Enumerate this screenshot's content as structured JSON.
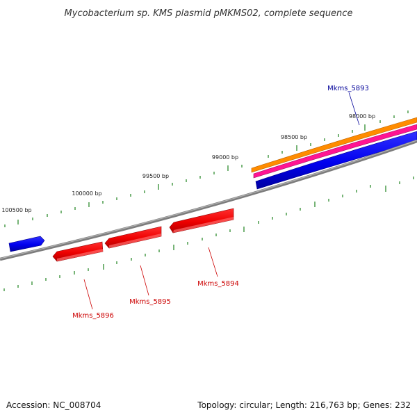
{
  "title": "Mycobacterium sp. KMS plasmid pMKMS02, complete sequence",
  "footer": {
    "accession": "Accession: NC_008704",
    "summary": "Topology: circular; Length: 216,763 bp; Genes: 232"
  },
  "colors": {
    "backbone": "#808080",
    "tick": "#2e8b2e",
    "forward_gene": "#0000ee",
    "reverse_gene": "#ee0000",
    "orange_track": "#ff8c00",
    "magenta_track": "#ff1493",
    "forward_label": "#000099",
    "reverse_label": "#cc0000"
  },
  "bp_markers": [
    {
      "label": "98000 bp"
    },
    {
      "label": "98500 bp"
    },
    {
      "label": "99000 bp"
    },
    {
      "label": "99500 bp"
    },
    {
      "label": "100000 bp"
    },
    {
      "label": "100500 bp"
    }
  ],
  "genes": [
    {
      "name": "Mkms_5893",
      "strand": "forward"
    },
    {
      "name": "Mkms_5894",
      "strand": "reverse"
    },
    {
      "name": "Mkms_5895",
      "strand": "reverse"
    },
    {
      "name": "Mkms_5896",
      "strand": "reverse"
    },
    {
      "name": "",
      "strand": "forward"
    }
  ]
}
